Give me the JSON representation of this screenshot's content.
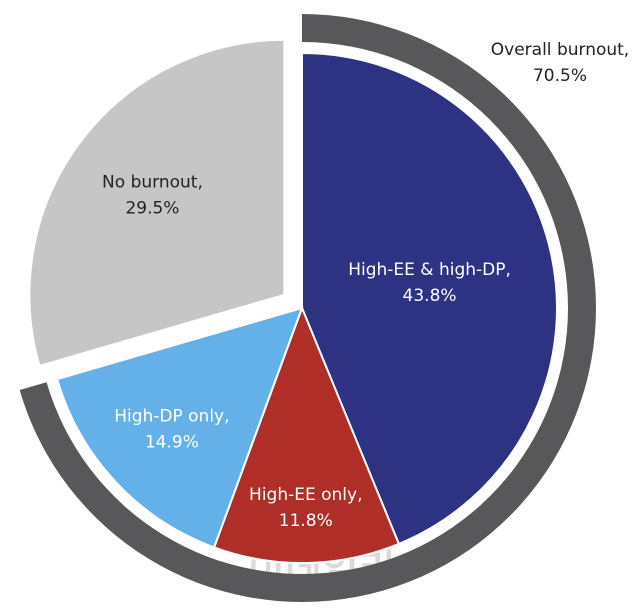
{
  "chart_data": {
    "type": "pie",
    "categories": [
      "High-EE & high-DP,",
      "High-EE only,",
      "High-DP only,",
      "No burnout,"
    ],
    "values": [
      43.8,
      11.8,
      14.9,
      29.5
    ],
    "value_labels": [
      "43.8%",
      "11.8%",
      "14.9%",
      "29.5%"
    ],
    "colors": [
      "#2e3282",
      "#b02e28",
      "#64b0e8",
      "#c6c6c6"
    ],
    "exploded": [
      false,
      false,
      false,
      true
    ],
    "ring": {
      "label": "Overall burnout,",
      "value": 70.5,
      "value_label": "70.5%",
      "color": "#58585a"
    },
    "watermark": "이데일리"
  }
}
